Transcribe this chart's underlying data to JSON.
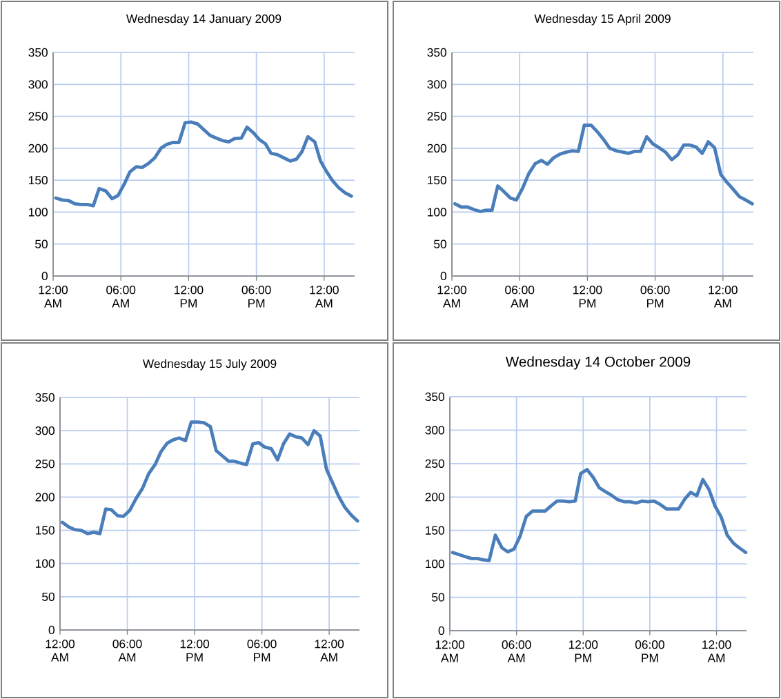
{
  "chart_data": [
    {
      "type": "line",
      "title": "Wednesday 14 January 2009",
      "color": "#4a7ebb",
      "grid": true,
      "xlim": [
        0,
        26.7
      ],
      "ylim": [
        0,
        350
      ],
      "yticks": [
        0,
        50,
        100,
        150,
        200,
        250,
        300,
        350
      ],
      "xticks": [
        {
          "value": 0,
          "label": "12:00 AM"
        },
        {
          "value": 6,
          "label": "06:00 AM"
        },
        {
          "value": 12,
          "label": "12:00 PM"
        },
        {
          "value": 18,
          "label": "06:00 PM"
        },
        {
          "value": 24,
          "label": "12:00 AM"
        }
      ],
      "x": [
        0.24,
        0.81,
        1.38,
        1.93,
        2.48,
        3.05,
        3.56,
        4.07,
        4.67,
        5.22,
        5.75,
        6.3,
        6.8,
        7.36,
        7.89,
        8.43,
        9.0,
        9.55,
        10.06,
        10.6,
        11.14,
        11.69,
        12.2,
        12.8,
        13.35,
        13.9,
        14.43,
        15.0,
        15.55,
        16.06,
        16.67,
        17.17,
        17.8,
        18.3,
        18.8,
        19.3,
        19.86,
        20.43,
        21.0,
        21.55,
        22.05,
        22.56,
        23.17,
        23.68,
        24.19,
        24.76,
        25.3,
        25.87,
        26.42
      ],
      "values": [
        122,
        119,
        118,
        113,
        112,
        112,
        110,
        137,
        133,
        121,
        126,
        144,
        163,
        171,
        170,
        176,
        185,
        200,
        206,
        209,
        209,
        240,
        241,
        238,
        229,
        220,
        216,
        212,
        210,
        215,
        216,
        233,
        223,
        213,
        207,
        192,
        190,
        185,
        180,
        183,
        195,
        218,
        210,
        180,
        164,
        149,
        138,
        130,
        125
      ]
    },
    {
      "type": "line",
      "title": "Wednesday 15 April 2009",
      "color": "#4a7ebb",
      "grid": true,
      "xlim": [
        0,
        26.7
      ],
      "ylim": [
        0,
        350
      ],
      "yticks": [
        0,
        50,
        100,
        150,
        200,
        250,
        300,
        350
      ],
      "xticks": [
        {
          "value": 0,
          "label": "12:00 AM"
        },
        {
          "value": 6,
          "label": "06:00 AM"
        },
        {
          "value": 12,
          "label": "12:00 PM"
        },
        {
          "value": 18,
          "label": "06:00 PM"
        },
        {
          "value": 24,
          "label": "12:00 AM"
        }
      ],
      "x": [
        0.27,
        0.82,
        1.39,
        1.95,
        2.52,
        3.03,
        3.55,
        4.06,
        4.61,
        5.18,
        5.7,
        6.25,
        6.8,
        7.38,
        7.93,
        8.46,
        9.0,
        9.59,
        10.14,
        10.66,
        11.2,
        11.72,
        12.34,
        12.87,
        13.42,
        13.98,
        14.55,
        15.12,
        15.64,
        16.15,
        16.7,
        17.25,
        17.79,
        18.34,
        18.91,
        19.47,
        20.02,
        20.53,
        21.07,
        21.62,
        22.17,
        22.7,
        23.26,
        23.81,
        24.34,
        24.9,
        25.47,
        26.02,
        26.6
      ],
      "values": [
        113,
        108,
        108,
        104,
        101,
        103,
        103,
        141,
        132,
        122,
        119,
        137,
        160,
        176,
        181,
        175,
        185,
        191,
        194,
        196,
        195,
        236,
        236,
        226,
        214,
        200,
        196,
        194,
        192,
        195,
        195,
        218,
        207,
        201,
        194,
        182,
        190,
        205,
        205,
        202,
        192,
        210,
        201,
        159,
        147,
        136,
        124,
        119,
        113
      ]
    },
    {
      "type": "line",
      "title": "Wednesday 15 July 2009",
      "color": "#4a7ebb",
      "grid": true,
      "xlim": [
        0,
        26.7
      ],
      "ylim": [
        0,
        350
      ],
      "yticks": [
        0,
        50,
        100,
        150,
        200,
        250,
        300,
        350
      ],
      "xticks": [
        {
          "value": 0,
          "label": "12:00 AM"
        },
        {
          "value": 6,
          "label": "06:00 AM"
        },
        {
          "value": 12,
          "label": "12:00 PM"
        },
        {
          "value": 18,
          "label": "06:00 PM"
        },
        {
          "value": 24,
          "label": "12:00 AM"
        }
      ],
      "x": [
        0.21,
        0.78,
        1.33,
        1.89,
        2.46,
        3.02,
        3.55,
        4.07,
        4.58,
        5.13,
        5.65,
        6.22,
        6.82,
        7.35,
        7.9,
        8.48,
        8.99,
        9.55,
        10.06,
        10.62,
        11.19,
        11.7,
        12.26,
        12.83,
        13.41,
        13.92,
        14.48,
        15.03,
        15.56,
        16.12,
        16.63,
        17.19,
        17.72,
        18.28,
        18.83,
        19.4,
        19.92,
        20.47,
        21.0,
        21.56,
        22.11,
        22.65,
        23.2,
        23.76,
        24.29,
        24.85,
        25.42,
        25.97,
        26.53
      ],
      "values": [
        162,
        155,
        151,
        150,
        145,
        147,
        145,
        182,
        181,
        172,
        171,
        180,
        199,
        213,
        235,
        249,
        268,
        281,
        286,
        289,
        285,
        313,
        313,
        312,
        306,
        270,
        262,
        254,
        254,
        251,
        249,
        280,
        282,
        275,
        273,
        256,
        280,
        295,
        291,
        289,
        279,
        300,
        292,
        242,
        222,
        201,
        184,
        173,
        164
      ]
    },
    {
      "type": "line",
      "title": "Wednesday 14 October  2009",
      "color": "#4a7ebb",
      "grid": true,
      "xlim": [
        0,
        26.7
      ],
      "ylim": [
        0,
        350
      ],
      "yticks": [
        0,
        50,
        100,
        150,
        200,
        250,
        300,
        350
      ],
      "xticks": [
        {
          "value": 0,
          "label": "12:00 AM"
        },
        {
          "value": 6,
          "label": "06:00 AM"
        },
        {
          "value": 12,
          "label": "12:00 PM"
        },
        {
          "value": 18,
          "label": "06:00 PM"
        },
        {
          "value": 24,
          "label": "12:00 AM"
        }
      ],
      "x": [
        0.25,
        0.79,
        1.35,
        1.94,
        2.46,
        3.02,
        3.54,
        4.1,
        4.69,
        5.21,
        5.77,
        6.31,
        6.88,
        7.44,
        8.02,
        8.58,
        9.13,
        9.65,
        10.21,
        10.73,
        11.29,
        11.77,
        12.35,
        12.92,
        13.44,
        14.0,
        14.52,
        15.1,
        15.67,
        16.21,
        16.77,
        17.33,
        17.85,
        18.38,
        18.92,
        19.52,
        20.04,
        20.58,
        21.15,
        21.67,
        22.23,
        22.77,
        23.33,
        23.85,
        24.42,
        24.96,
        25.52,
        26.04,
        26.63
      ],
      "values": [
        117,
        114,
        111,
        108,
        108,
        106,
        105,
        143,
        124,
        118,
        122,
        141,
        171,
        179,
        179,
        179,
        187,
        194,
        194,
        193,
        194,
        235,
        241,
        229,
        214,
        208,
        203,
        196,
        193,
        193,
        191,
        194,
        193,
        194,
        189,
        182,
        182,
        182,
        197,
        207,
        202,
        226,
        211,
        187,
        170,
        143,
        131,
        124,
        117
      ]
    }
  ]
}
